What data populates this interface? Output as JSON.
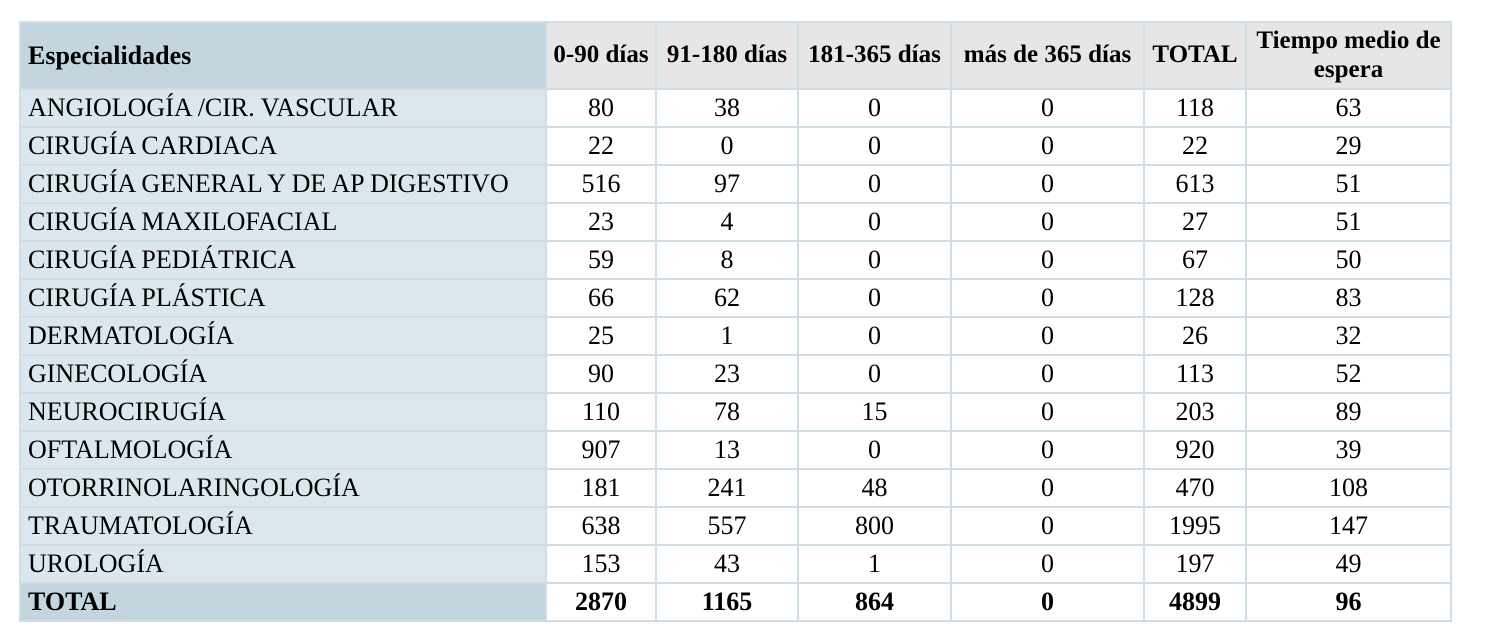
{
  "table": {
    "columns": [
      {
        "id": "especialidades",
        "label": "Especialidades"
      },
      {
        "id": "dias-0-90",
        "label": "0-90 días"
      },
      {
        "id": "dias-91-180",
        "label": "91-180 días"
      },
      {
        "id": "dias-181-365",
        "label": "181-365 días"
      },
      {
        "id": "mas-de-365-dias",
        "label": "más de 365 días"
      },
      {
        "id": "total",
        "label": "TOTAL"
      },
      {
        "id": "tiempo-medio",
        "label": "Tiempo medio de espera"
      }
    ],
    "rows": [
      {
        "especialidad": "ANGIOLOGÍA /CIR. VASCULAR",
        "values": [
          "80",
          "38",
          "0",
          "0",
          "118",
          "63"
        ],
        "is_total": false
      },
      {
        "especialidad": "CIRUGÍA CARDIACA",
        "values": [
          "22",
          "0",
          "0",
          "0",
          "22",
          "29"
        ],
        "is_total": false
      },
      {
        "especialidad": "CIRUGÍA GENERAL Y DE AP DIGESTIVO",
        "values": [
          "516",
          "97",
          "0",
          "0",
          "613",
          "51"
        ],
        "is_total": false
      },
      {
        "especialidad": "CIRUGÍA MAXILOFACIAL",
        "values": [
          "23",
          "4",
          "0",
          "0",
          "27",
          "51"
        ],
        "is_total": false
      },
      {
        "especialidad": "CIRUGÍA PEDIÁTRICA",
        "values": [
          "59",
          "8",
          "0",
          "0",
          "67",
          "50"
        ],
        "is_total": false
      },
      {
        "especialidad": "CIRUGÍA PLÁSTICA",
        "values": [
          "66",
          "62",
          "0",
          "0",
          "128",
          "83"
        ],
        "is_total": false
      },
      {
        "especialidad": "DERMATOLOGÍA",
        "values": [
          "25",
          "1",
          "0",
          "0",
          "26",
          "32"
        ],
        "is_total": false
      },
      {
        "especialidad": "GINECOLOGÍA",
        "values": [
          "90",
          "23",
          "0",
          "0",
          "113",
          "52"
        ],
        "is_total": false
      },
      {
        "especialidad": "NEUROCIRUGÍA",
        "values": [
          "110",
          "78",
          "15",
          "0",
          "203",
          "89"
        ],
        "is_total": false
      },
      {
        "especialidad": "OFTALMOLOGÍA",
        "values": [
          "907",
          "13",
          "0",
          "0",
          "920",
          "39"
        ],
        "is_total": false
      },
      {
        "especialidad": "OTORRINOLARINGOLOGÍA",
        "values": [
          "181",
          "241",
          "48",
          "0",
          "470",
          "108"
        ],
        "is_total": false
      },
      {
        "especialidad": "TRAUMATOLOGÍA",
        "values": [
          "638",
          "557",
          "800",
          "0",
          "1995",
          "147"
        ],
        "is_total": false
      },
      {
        "especialidad": "UROLOGÍA",
        "values": [
          "153",
          "43",
          "1",
          "0",
          "197",
          "49"
        ],
        "is_total": false
      },
      {
        "especialidad": "TOTAL",
        "values": [
          "2870",
          "1165",
          "864",
          "0",
          "4899",
          "96"
        ],
        "is_total": true
      }
    ]
  },
  "colors": {
    "header-blue": "#c3d5de",
    "row-blue": "#dce7ed",
    "header-gray": "#e7e6e6",
    "border": "#cfdee6"
  }
}
